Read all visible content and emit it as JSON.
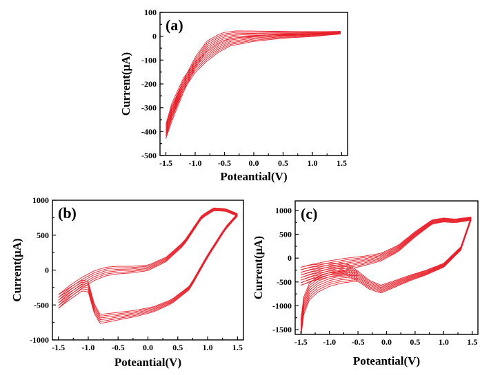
{
  "chart_data": [
    {
      "type": "line",
      "panel_label": "(a)",
      "xlabel": "Poteantial(V)",
      "ylabel": "Current(μA)",
      "xlim": [
        -1.6,
        1.6
      ],
      "ylim": [
        -500,
        100
      ],
      "x_ticks": [
        -1.5,
        -1.0,
        -0.5,
        0.0,
        0.5,
        1.0,
        1.5
      ],
      "x_tick_labels": [
        "-1.5",
        "-1.0",
        "-0.5",
        "0.0",
        "0.5",
        "1.0",
        "1.5"
      ],
      "y_ticks": [
        100,
        0,
        -100,
        -200,
        -300,
        -400,
        -500
      ],
      "y_tick_labels": [
        "100",
        "0",
        "-100",
        "-200",
        "-300",
        "-400",
        "-500"
      ],
      "series_color": "#e8202a",
      "cycles": 6,
      "series": [
        {
          "x": [
            1.48,
            1.0,
            0.5,
            0.0,
            -0.3,
            -0.5,
            -0.6,
            -0.8,
            -1.0,
            -1.2,
            -1.4,
            -1.5
          ],
          "y": [
            15,
            13,
            12,
            10,
            8,
            0,
            -10,
            -40,
            -110,
            -210,
            -330,
            -400
          ]
        },
        {
          "x": [
            -1.5,
            -1.4,
            -1.2,
            -1.0,
            -0.8,
            -0.6,
            -0.4,
            0.0,
            0.5,
            1.0,
            1.48
          ],
          "y": [
            -400,
            -310,
            -200,
            -130,
            -85,
            -50,
            -25,
            -10,
            0,
            5,
            15
          ]
        }
      ]
    },
    {
      "type": "line",
      "panel_label": "(b)",
      "xlabel": "Poteantial(V)",
      "ylabel": "Current(μA)",
      "xlim": [
        -1.6,
        1.6
      ],
      "ylim": [
        -1000,
        1000
      ],
      "x_ticks": [
        -1.5,
        -1.0,
        -0.5,
        0.0,
        0.5,
        1.0,
        1.5
      ],
      "x_tick_labels": [
        "-1.5",
        "-1.0",
        "-0.5",
        "0.0",
        "0.5",
        "1.0",
        "1.5"
      ],
      "y_ticks": [
        1000,
        500,
        0,
        -500,
        -1000
      ],
      "y_tick_labels": [
        "1000",
        "500",
        "0",
        "-500",
        "-1000"
      ],
      "series_color": "#e8202a",
      "cycles": 6,
      "series": [
        {
          "x": [
            -1.5,
            -1.3,
            -1.1,
            -0.9,
            -0.7,
            -0.5,
            -0.3,
            0.0,
            0.3,
            0.6,
            0.9,
            1.1,
            1.3,
            1.5
          ],
          "y": [
            -450,
            -300,
            -180,
            -80,
            -20,
            0,
            5,
            30,
            150,
            380,
            760,
            870,
            860,
            790
          ]
        },
        {
          "x": [
            1.5,
            1.3,
            1.0,
            0.7,
            0.4,
            0.1,
            -0.2,
            -0.5,
            -0.8,
            -0.9,
            -1.0,
            -1.1,
            -1.3,
            -1.5
          ],
          "y": [
            790,
            600,
            200,
            -250,
            -450,
            -560,
            -620,
            -660,
            -700,
            -550,
            -240,
            -220,
            -330,
            -450
          ]
        }
      ]
    },
    {
      "type": "line",
      "panel_label": "(c)",
      "xlabel": "Poteantial(V)",
      "ylabel": "Current(μA)",
      "xlim": [
        -1.6,
        1.6
      ],
      "ylim": [
        -1600,
        1200
      ],
      "x_ticks": [
        -1.5,
        -1.0,
        -0.5,
        0.0,
        0.5,
        1.0,
        1.5
      ],
      "x_tick_labels": [
        "-1.5",
        "-1.0",
        "-0.5",
        "0.0",
        "0.5",
        "1.0",
        "1.5"
      ],
      "y_ticks": [
        1000,
        500,
        0,
        -500,
        -1000,
        -1500
      ],
      "y_tick_labels": [
        "1000",
        "500",
        "0",
        "-500",
        "-1000",
        "-1500"
      ],
      "series_color": "#e8202a",
      "cycles": 8,
      "series": [
        {
          "x": [
            -1.5,
            -1.3,
            -1.0,
            -0.7,
            -0.4,
            -0.1,
            0.2,
            0.5,
            0.8,
            1.0,
            1.2,
            1.48
          ],
          "y": [
            -380,
            -300,
            -200,
            -120,
            -60,
            20,
            200,
            500,
            760,
            800,
            780,
            830
          ]
        },
        {
          "x": [
            1.48,
            1.3,
            1.0,
            0.7,
            0.4,
            0.1,
            -0.1,
            -0.3,
            -0.5,
            -0.7,
            -1.0,
            -1.3,
            -1.5
          ],
          "y": [
            830,
            200,
            -150,
            -300,
            -420,
            -560,
            -650,
            -560,
            -380,
            -230,
            -250,
            -310,
            -380
          ]
        },
        {
          "x": [
            -1.5,
            -1.45,
            -1.35,
            -1.2,
            -1.0,
            -0.8,
            -0.6,
            -0.5
          ],
          "y": [
            -1480,
            -1000,
            -700,
            -550,
            -450,
            -400,
            -380,
            -380
          ]
        }
      ]
    }
  ]
}
